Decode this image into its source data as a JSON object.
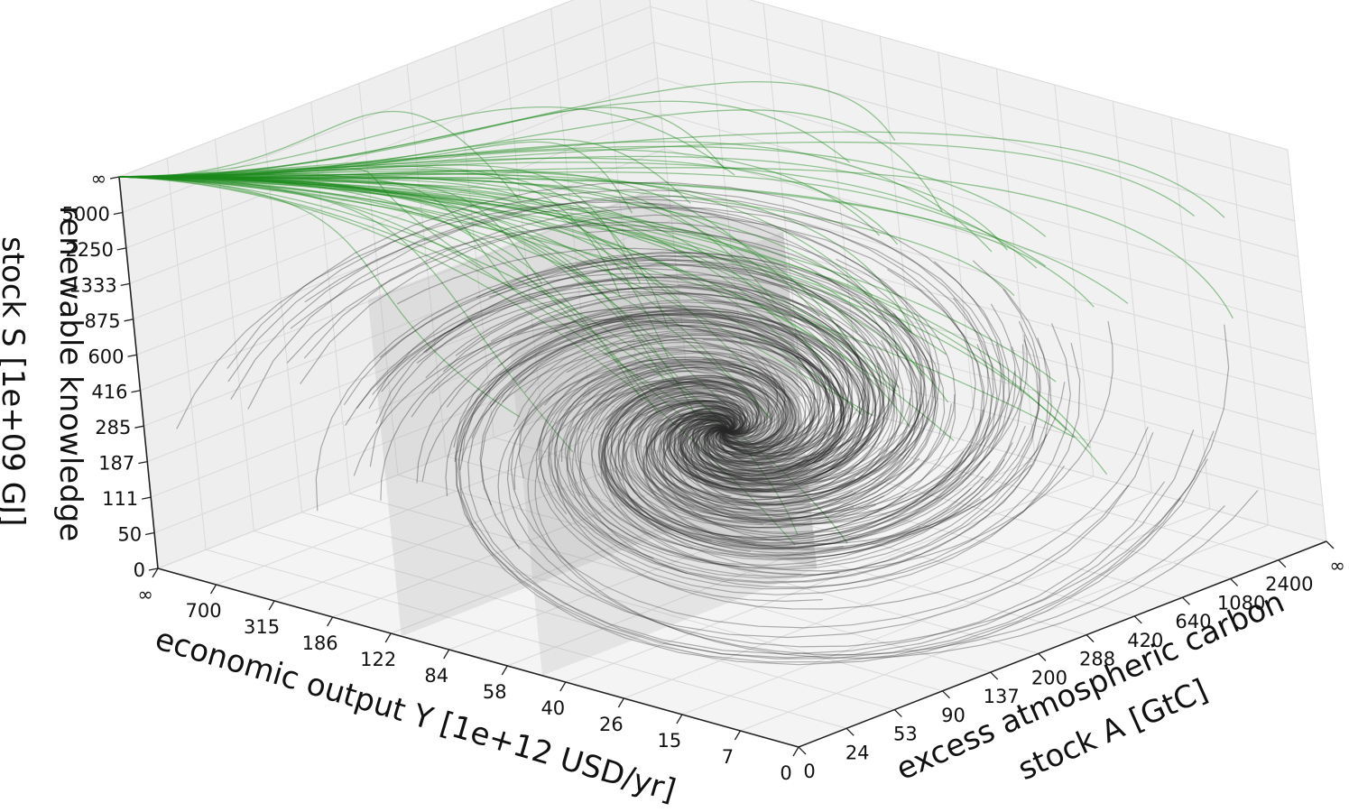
{
  "chart_data": {
    "type": "3d-line",
    "title": "",
    "axes": {
      "x": {
        "label": "economic output Y [1e+12 USD/yr]",
        "ticks": [
          "0",
          "7",
          "15",
          "26",
          "40",
          "58",
          "84",
          "122",
          "186",
          "315",
          "700",
          "∞"
        ]
      },
      "y": {
        "label": "excess atmospheric carbon stock A [GtC]",
        "ticks": [
          "0",
          "24",
          "53",
          "90",
          "137",
          "200",
          "288",
          "420",
          "640",
          "1080",
          "2400",
          "∞"
        ]
      },
      "z": {
        "label": "renewable knowledge stock S [1e+09 GJ]",
        "ticks": [
          "0",
          "50",
          "111",
          "187",
          "285",
          "416",
          "600",
          "875",
          "1333",
          "2250",
          "5000",
          "∞"
        ]
      }
    },
    "series": [
      {
        "color": "#1a8a1a",
        "description_count": 70,
        "attractor": {
          "Y": "∞",
          "A": "0",
          "S": "∞"
        }
      },
      {
        "color": "#111111",
        "description_count": 240,
        "attractor": {
          "Y": "84",
          "A": "288",
          "S": "187"
        }
      }
    ],
    "grid": true,
    "colors": {
      "green": "#1a8a1a",
      "black": "#111111",
      "box": "#9a9a9a"
    }
  }
}
